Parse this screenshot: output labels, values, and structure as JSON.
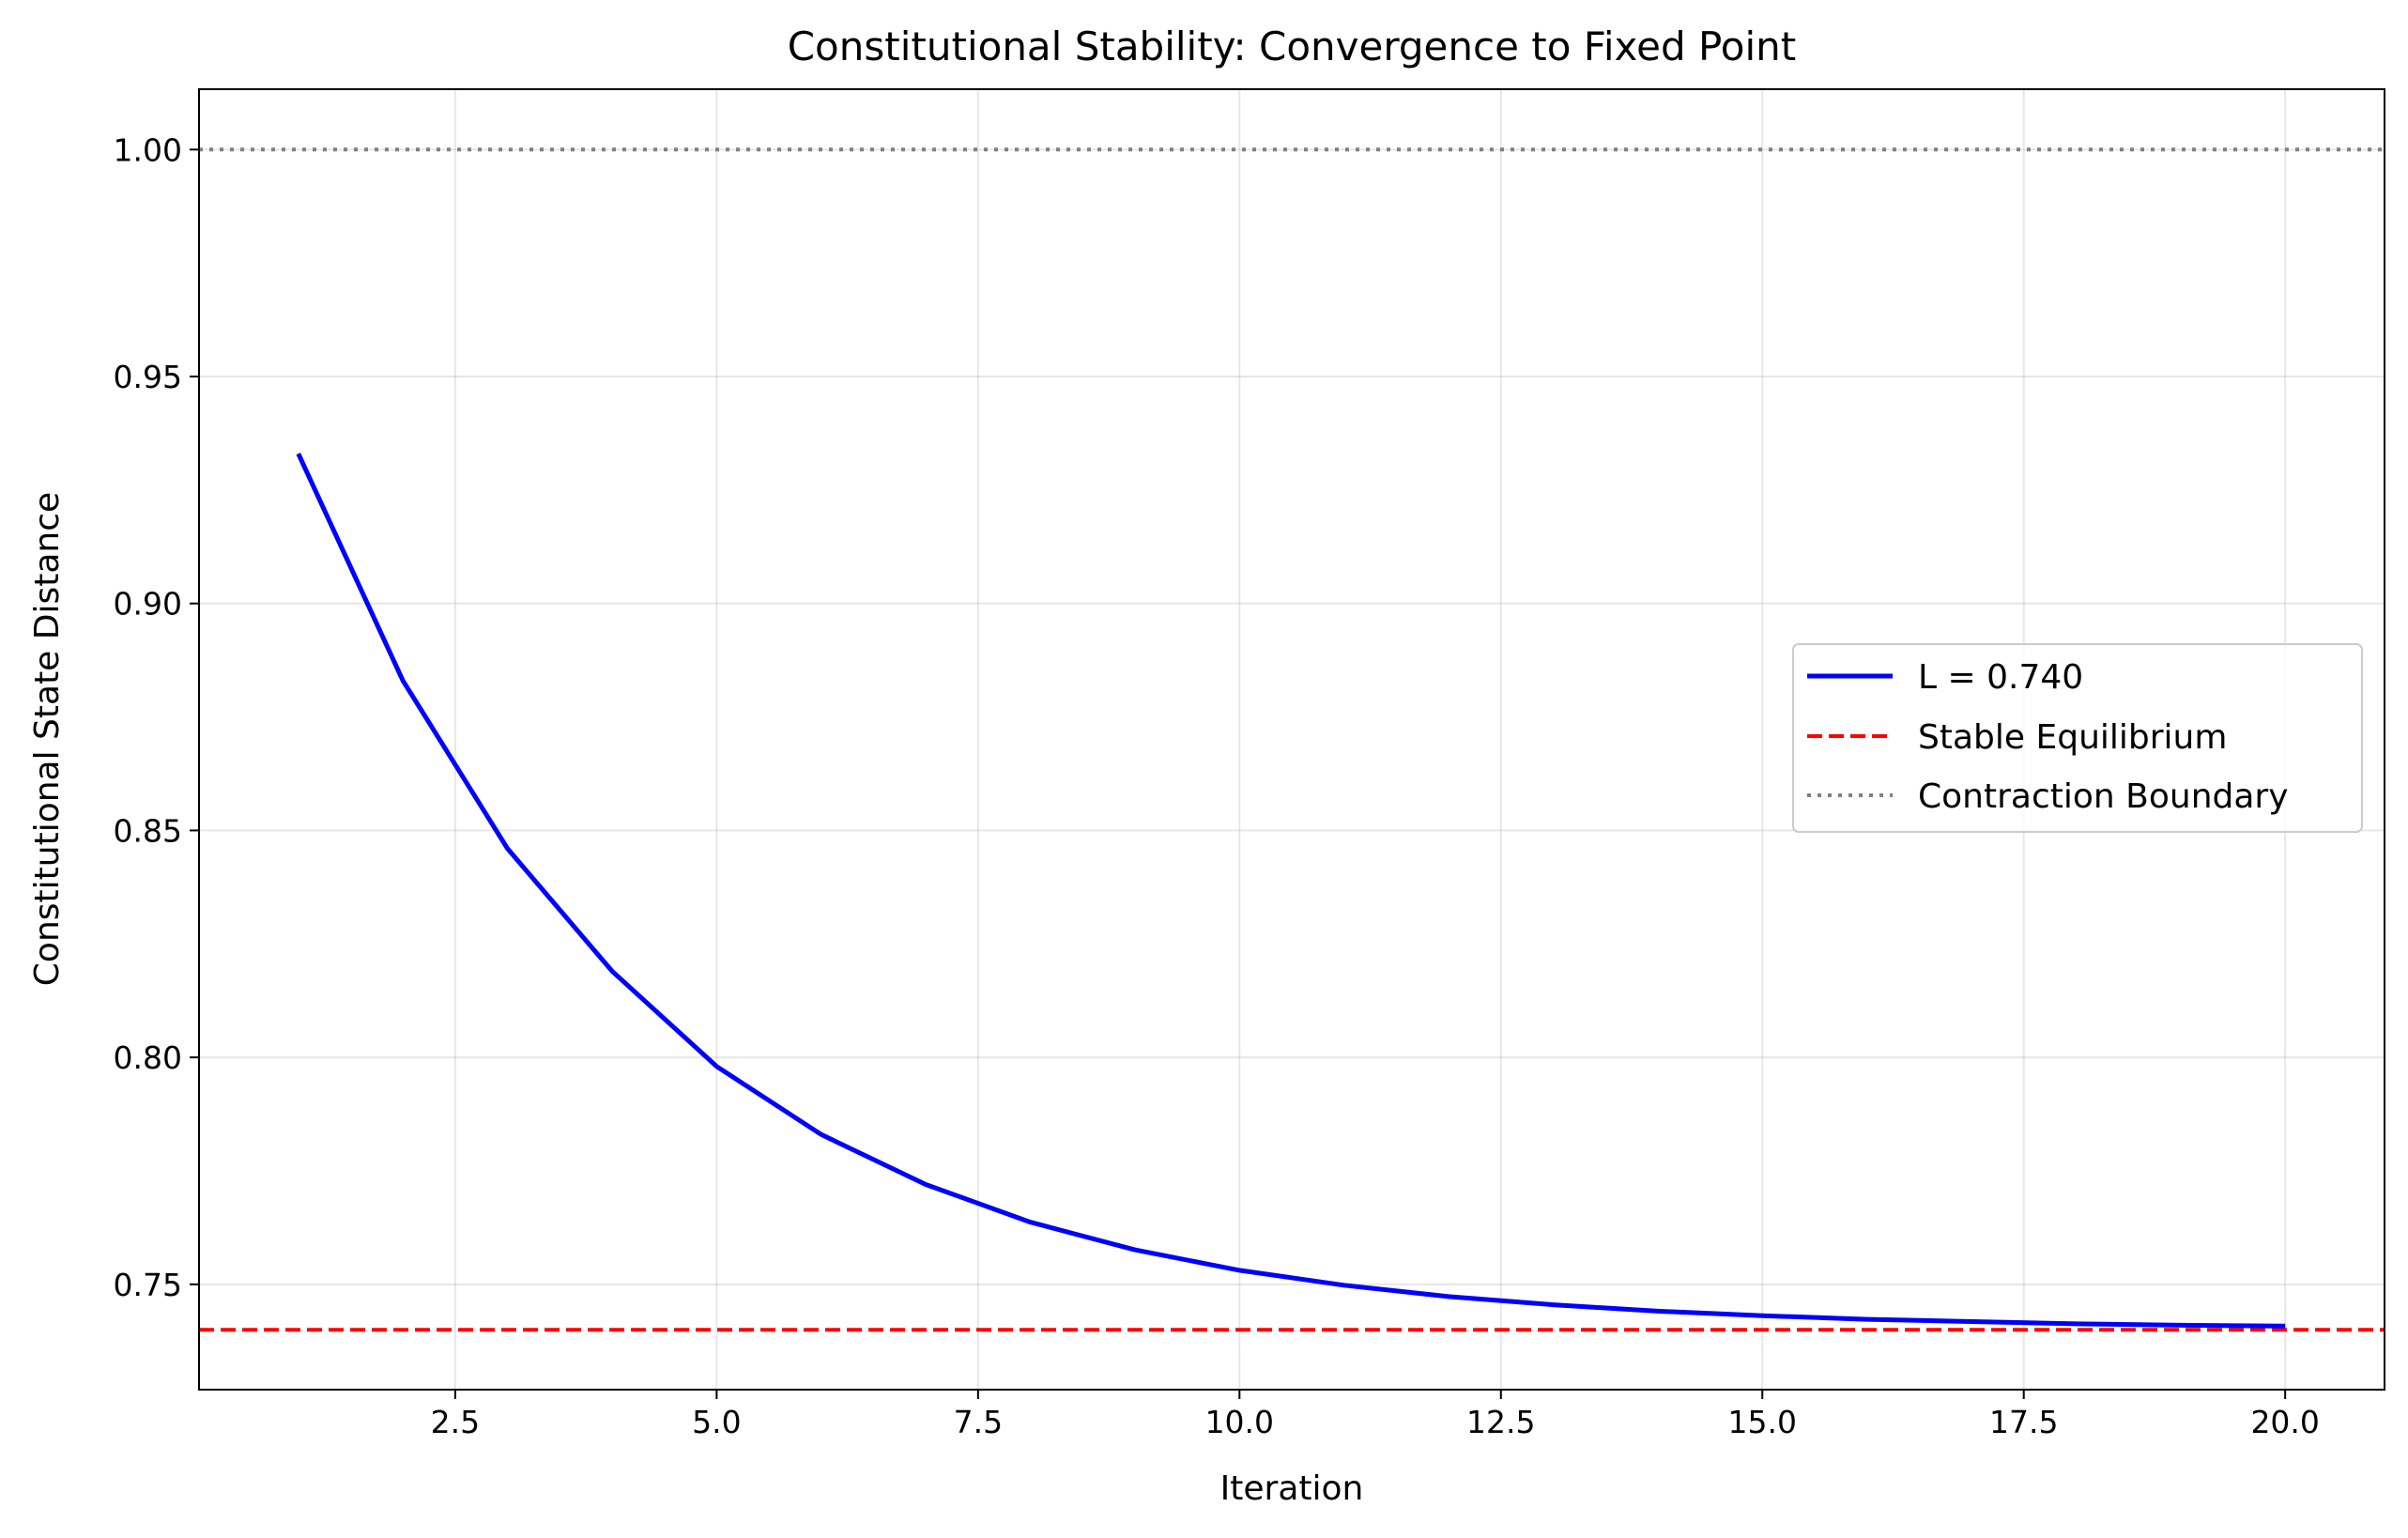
{
  "chart_data": {
    "type": "line",
    "title": "Constitutional Stability: Convergence to Fixed Point",
    "xlabel": "Iteration",
    "ylabel": "Constitutional State Distance",
    "xlim": [
      0.05,
      20.95
    ],
    "ylim": [
      0.7268,
      1.0133
    ],
    "xticks": [
      2.5,
      5.0,
      7.5,
      10.0,
      12.5,
      15.0,
      17.5,
      20.0
    ],
    "xtick_labels": [
      "2.5",
      "5.0",
      "7.5",
      "10.0",
      "12.5",
      "15.0",
      "17.5",
      "20.0"
    ],
    "yticks": [
      0.75,
      0.8,
      0.85,
      0.9,
      0.95,
      1.0
    ],
    "ytick_labels": [
      "0.75",
      "0.80",
      "0.85",
      "0.90",
      "0.95",
      "1.00"
    ],
    "grid": true,
    "legend_position": "center-right",
    "series": [
      {
        "name": "L = 0.740",
        "style": "solid",
        "color": "#0000ff",
        "x": [
          1,
          2,
          3,
          4,
          5,
          6,
          7,
          8,
          9,
          10,
          11,
          12,
          13,
          14,
          15,
          16,
          17,
          18,
          19,
          20
        ],
        "y": [
          0.933,
          0.883,
          0.846,
          0.819,
          0.798,
          0.783,
          0.772,
          0.7637,
          0.7576,
          0.7531,
          0.7498,
          0.7473,
          0.7455,
          0.7441,
          0.7431,
          0.7423,
          0.7418,
          0.7413,
          0.741,
          0.7408
        ]
      }
    ],
    "reference_lines": [
      {
        "name": "Stable Equilibrium",
        "orientation": "horizontal",
        "y": 0.74,
        "style": "dashed",
        "color": "#ff0000"
      },
      {
        "name": "Contraction Boundary",
        "orientation": "horizontal",
        "y": 1.0,
        "style": "dotted",
        "color": "#808080"
      }
    ]
  }
}
